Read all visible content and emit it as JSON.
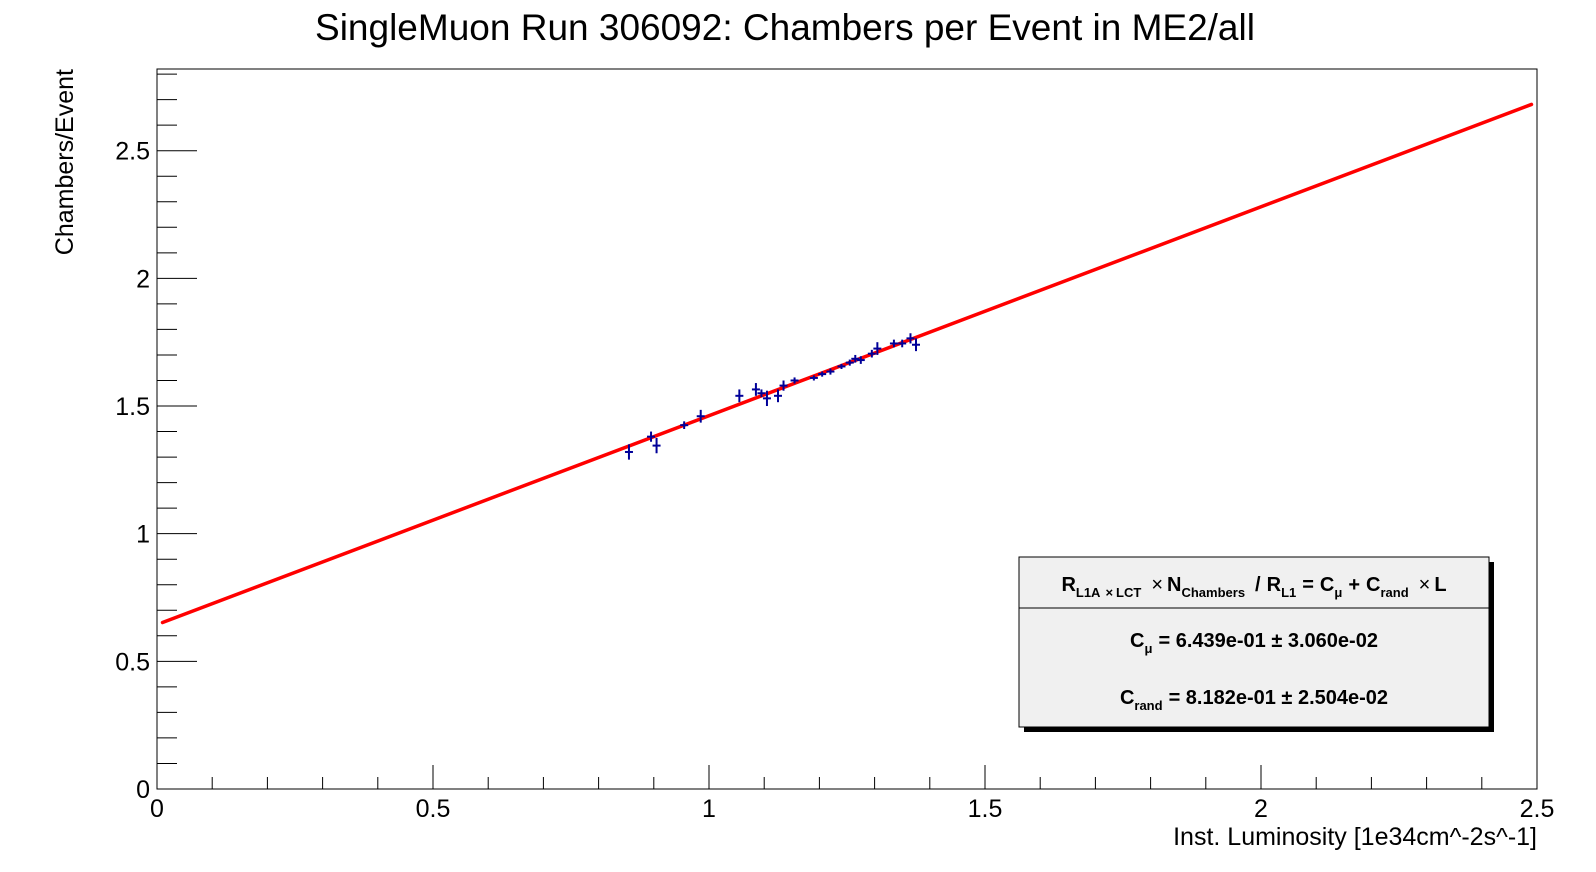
{
  "chart_data": {
    "type": "scatter",
    "title": "SingleMuon Run 306092: Chambers per Event in ME2/all",
    "xlabel": "Inst. Luminosity [1e34cm^-2s^-1]",
    "ylabel": "Chambers/Event",
    "xlim": [
      0,
      2.5
    ],
    "ylim": [
      0,
      2.82
    ],
    "x_ticks": [
      0,
      0.5,
      1,
      1.5,
      2,
      2.5
    ],
    "x_tick_labels": [
      "0",
      "0.5",
      "1",
      "1.5",
      "2",
      "2.5"
    ],
    "y_ticks": [
      0,
      0.5,
      1,
      1.5,
      2,
      2.5
    ],
    "y_tick_labels": [
      "0",
      "0.5",
      "1",
      "1.5",
      "2",
      "2.5"
    ],
    "grid": false,
    "series": [
      {
        "kind": "points-with-errors",
        "color": "#000099",
        "points": [
          {
            "x": 0.855,
            "y": 1.32,
            "err": 0.03
          },
          {
            "x": 0.895,
            "y": 1.38,
            "err": 0.02
          },
          {
            "x": 0.905,
            "y": 1.345,
            "err": 0.03
          },
          {
            "x": 0.955,
            "y": 1.425,
            "err": 0.015
          },
          {
            "x": 0.985,
            "y": 1.46,
            "err": 0.025
          },
          {
            "x": 1.055,
            "y": 1.54,
            "err": 0.025
          },
          {
            "x": 1.085,
            "y": 1.565,
            "err": 0.025
          },
          {
            "x": 1.095,
            "y": 1.55,
            "err": 0.015
          },
          {
            "x": 1.105,
            "y": 1.53,
            "err": 0.03
          },
          {
            "x": 1.125,
            "y": 1.54,
            "err": 0.025
          },
          {
            "x": 1.135,
            "y": 1.58,
            "err": 0.02
          },
          {
            "x": 1.155,
            "y": 1.6,
            "err": 0.012
          },
          {
            "x": 1.19,
            "y": 1.61,
            "err": 0.01
          },
          {
            "x": 1.205,
            "y": 1.625,
            "err": 0.01
          },
          {
            "x": 1.22,
            "y": 1.635,
            "err": 0.012
          },
          {
            "x": 1.24,
            "y": 1.655,
            "err": 0.01
          },
          {
            "x": 1.255,
            "y": 1.67,
            "err": 0.012
          },
          {
            "x": 1.265,
            "y": 1.685,
            "err": 0.015
          },
          {
            "x": 1.275,
            "y": 1.68,
            "err": 0.015
          },
          {
            "x": 1.295,
            "y": 1.705,
            "err": 0.015
          },
          {
            "x": 1.305,
            "y": 1.725,
            "err": 0.025
          },
          {
            "x": 1.335,
            "y": 1.745,
            "err": 0.015
          },
          {
            "x": 1.35,
            "y": 1.745,
            "err": 0.015
          },
          {
            "x": 1.365,
            "y": 1.765,
            "err": 0.02
          },
          {
            "x": 1.375,
            "y": 1.74,
            "err": 0.025
          }
        ]
      },
      {
        "kind": "fit-line",
        "color": "#ff0000",
        "intercept": 0.6439,
        "slope": 0.8182,
        "x_range": [
          0.01,
          2.49
        ]
      }
    ],
    "legend": {
      "position": "bottom-right",
      "header": {
        "r1": "R",
        "r1_sub": "L1A",
        "times1": "×",
        "lct_sub": "LCT",
        "times2": "×",
        "n": "N",
        "n_sub": "Chambers",
        "slash": "/",
        "r2": "R",
        "r2_sub": "L1",
        "eq": "=",
        "c1": "C",
        "c1_sub": "μ",
        "plus": "+",
        "c2": "C",
        "c2_sub": "rand",
        "times3": "×",
        "l": "L"
      },
      "rows": [
        {
          "sym": "C",
          "sub": "μ",
          "value": "= 6.439e-01 ± 3.060e-02"
        },
        {
          "sym": "C",
          "sub": "rand",
          "value": "= 8.182e-01 ± 2.504e-02"
        }
      ]
    }
  }
}
